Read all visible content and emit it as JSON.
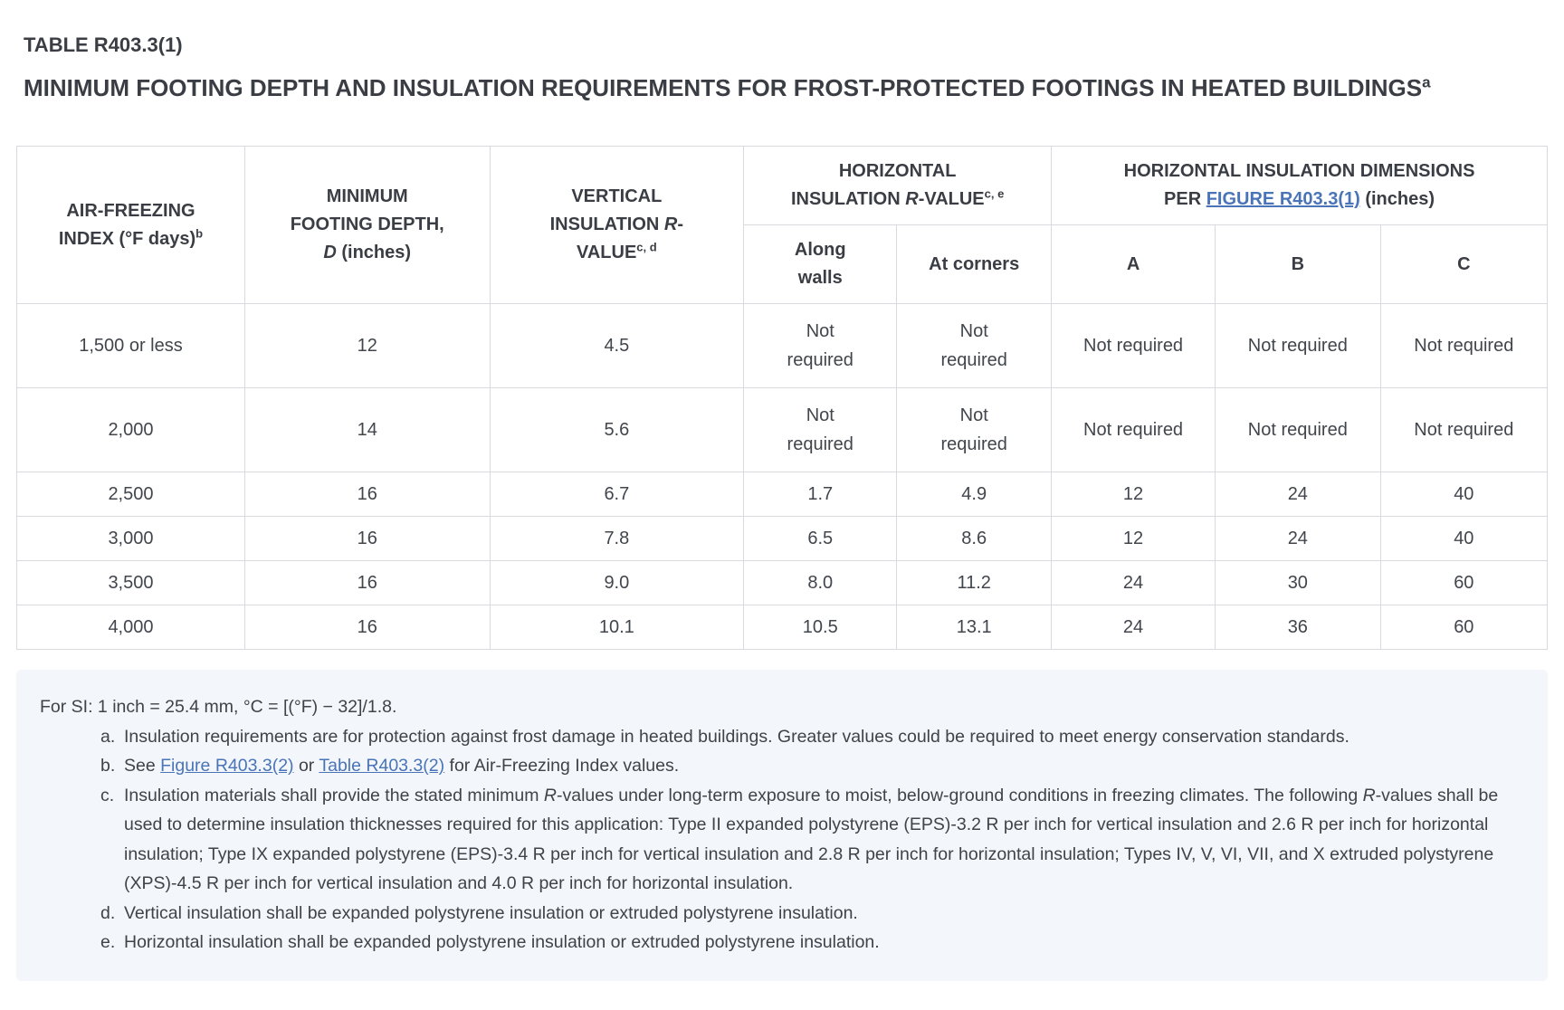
{
  "header": {
    "title": "TABLE R403.3(1)",
    "subtitle": [
      {
        "t": "MINIMUM FOOTING DEPTH AND INSULATION REQUIREMENTS FOR FROST-PROTECTED FOOTINGS IN HEATED BUILDINGS"
      },
      {
        "t": "a",
        "s": "sup"
      }
    ]
  },
  "colors": {
    "link_blue": "#4a74b8",
    "text_gray": "#3f434a",
    "border_gray": "#d9dade",
    "notes_background": "#f3f6fa"
  },
  "table": {
    "columns": {
      "air_freezing": [
        {
          "t": "AIR-FREEZING INDEX (°F days)"
        },
        {
          "t": "b",
          "s": "sup"
        }
      ],
      "footing_depth": [
        {
          "t": "MINIMUM FOOTING DEPTH, "
        },
        {
          "t": "D",
          "s": "i"
        },
        {
          "t": " (inches)"
        }
      ],
      "vertical_r": [
        {
          "t": "VERTICAL INSULATION "
        },
        {
          "t": "R",
          "s": "i"
        },
        {
          "t": "-VALUE"
        },
        {
          "t": "c, d",
          "s": "sup"
        }
      ],
      "horizontal_r_group": [
        {
          "t": "HORIZONTAL INSULATION "
        },
        {
          "t": "R",
          "s": "i"
        },
        {
          "t": "-VALUE"
        },
        {
          "t": "c, e",
          "s": "sup"
        }
      ],
      "along_walls": [
        {
          "t": "Along walls"
        }
      ],
      "at_corners": [
        {
          "t": "At corners"
        }
      ],
      "dimensions_group": [
        {
          "t": "HORIZONTAL INSULATION DIMENSIONS PER "
        },
        {
          "t": "FIGURE R403.3(1)",
          "s": "link",
          "name": "figure-r403-3-1-link"
        },
        {
          "t": " (inches)"
        }
      ],
      "dim_a": "A",
      "dim_b": "B",
      "dim_c": "C"
    },
    "rows": [
      [
        "1,500 or less",
        "12",
        "4.5",
        "Not required",
        "Not required",
        "Not required",
        "Not required",
        "Not required"
      ],
      [
        "2,000",
        "14",
        "5.6",
        "Not required",
        "Not required",
        "Not required",
        "Not required",
        "Not required"
      ],
      [
        "2,500",
        "16",
        "6.7",
        "1.7",
        "4.9",
        "12",
        "24",
        "40"
      ],
      [
        "3,000",
        "16",
        "7.8",
        "6.5",
        "8.6",
        "12",
        "24",
        "40"
      ],
      [
        "3,500",
        "16",
        "9.0",
        "8.0",
        "11.2",
        "24",
        "30",
        "60"
      ],
      [
        "4,000",
        "16",
        "10.1",
        "10.5",
        "13.1",
        "24",
        "36",
        "60"
      ]
    ]
  },
  "notes": {
    "si": [
      {
        "t": "For SI: 1 inch = 25.4 mm, °C = [(°F) − 32]/1.8."
      }
    ],
    "items": [
      {
        "label": "a.",
        "text": [
          {
            "t": "Insulation requirements are for protection against frost damage in heated buildings. Greater values could be required to meet energy conservation standards."
          }
        ]
      },
      {
        "label": "b.",
        "text": [
          {
            "t": "See "
          },
          {
            "t": "Figure R403.3(2)",
            "s": "link",
            "name": "figure-r403-3-2-link"
          },
          {
            "t": " or "
          },
          {
            "t": "Table R403.3(2)",
            "s": "link",
            "name": "table-r403-3-2-link"
          },
          {
            "t": " for Air-Freezing Index values."
          }
        ]
      },
      {
        "label": "c.",
        "text": [
          {
            "t": "Insulation materials shall provide the stated minimum "
          },
          {
            "t": "R",
            "s": "i"
          },
          {
            "t": "-values under long-term exposure to moist, below-ground conditions in freezing climates. The following "
          },
          {
            "t": "R",
            "s": "i"
          },
          {
            "t": "-values shall be used to determine insulation thicknesses required for this application: Type II expanded polystyrene (EPS)-3.2 R per inch for vertical insulation and 2.6 R per inch for horizontal insulation; Type IX expanded polystyrene (EPS)-3.4 R per inch for vertical insulation and 2.8 R per inch for horizontal insulation; Types IV, V, VI, VII, and X extruded polystyrene (XPS)-4.5 R per inch for vertical insulation and 4.0 R per inch for horizontal insulation."
          }
        ]
      },
      {
        "label": "d.",
        "text": [
          {
            "t": "Vertical insulation shall be expanded polystyrene insulation or extruded polystyrene insulation."
          }
        ]
      },
      {
        "label": "e.",
        "text": [
          {
            "t": "Horizontal insulation shall be expanded polystyrene insulation or extruded polystyrene insulation."
          }
        ]
      }
    ]
  }
}
